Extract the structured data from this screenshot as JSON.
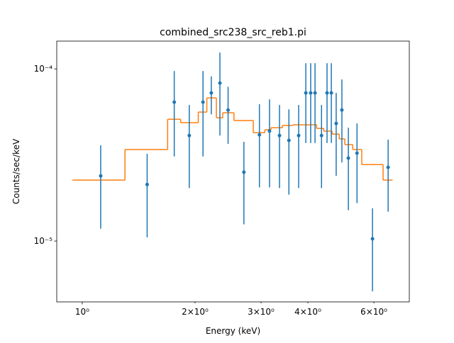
{
  "chart_data": {
    "type": "errorbar",
    "title": "combined_src238_src_reb1.pi",
    "xlabel": "Energy (keV)",
    "ylabel": "Counts/sec/keV",
    "xscale": "log",
    "yscale": "log",
    "xlim": [
      0.855,
      7.46
    ],
    "ylim": [
      4.43e-06,
      0.000145
    ],
    "xticks": [
      {
        "value": 1,
        "label": "10⁰"
      },
      {
        "value": 2,
        "label": "2×10⁰"
      },
      {
        "value": 3,
        "label": "3×10⁰"
      },
      {
        "value": 4,
        "label": "4×10⁰"
      },
      {
        "value": 6,
        "label": "6×10⁰"
      }
    ],
    "yticks": [
      {
        "value": 1e-05,
        "label": "10⁻⁵"
      },
      {
        "value": 0.0001,
        "label": "10⁻⁴"
      }
    ],
    "series": [
      {
        "color": "#1f77b4",
        "x": [
          1.12,
          1.49,
          1.76,
          1.93,
          2.1,
          2.21,
          2.33,
          2.45,
          2.7,
          2.97,
          3.16,
          3.36,
          3.56,
          3.78,
          3.95,
          4.07,
          4.18,
          4.35,
          4.5,
          4.62,
          4.76,
          4.93,
          5.13,
          5.41,
          5.95,
          6.55
        ],
        "values": [
          2.39e-05,
          2.13e-05,
          6.41e-05,
          4.1e-05,
          6.41e-05,
          7.25e-05,
          8.27e-05,
          5.77e-05,
          2.51e-05,
          4.14e-05,
          4.35e-05,
          4.1e-05,
          3.84e-05,
          4.1e-05,
          7.25e-05,
          7.25e-05,
          7.25e-05,
          4.1e-05,
          7.25e-05,
          7.25e-05,
          4.82e-05,
          5.77e-05,
          3.03e-05,
          3.24e-05,
          1.03e-05,
          2.68e-05
        ],
        "errors": [
          1.21e-05,
          1.08e-05,
          3.31e-05,
          2.07e-05,
          3.31e-05,
          1.8e-05,
          4.17e-05,
          2.1e-05,
          1.26e-05,
          2.09e-05,
          2.3e-05,
          2.07e-05,
          1.98e-05,
          2.07e-05,
          3.54e-05,
          3.54e-05,
          3.54e-05,
          2.07e-05,
          3.54e-05,
          3.54e-05,
          2.43e-05,
          2.91e-05,
          1.52e-05,
          1.58e-05,
          5.2e-06,
          1.2e-05
        ]
      }
    ],
    "model": {
      "color": "#ff7f0e",
      "bin_edges": [
        0.941,
        1.3,
        1.69,
        1.83,
        2.04,
        2.15,
        2.28,
        2.37,
        2.54,
        2.86,
        3.07,
        3.19,
        3.42,
        3.65,
        4.22,
        4.41,
        4.64,
        4.85,
        5.02,
        5.27,
        5.57,
        6.35,
        6.73
      ],
      "values": [
        2.26e-05,
        3.4e-05,
        5.1e-05,
        4.87e-05,
        5.61e-05,
        6.78e-05,
        5.2e-05,
        5.56e-05,
        5.01e-05,
        4.26e-05,
        4.43e-05,
        4.55e-05,
        4.69e-05,
        4.73e-05,
        4.51e-05,
        4.35e-05,
        4.18e-05,
        3.92e-05,
        3.63e-05,
        3.4e-05,
        2.78e-05,
        2.26e-05
      ]
    }
  }
}
